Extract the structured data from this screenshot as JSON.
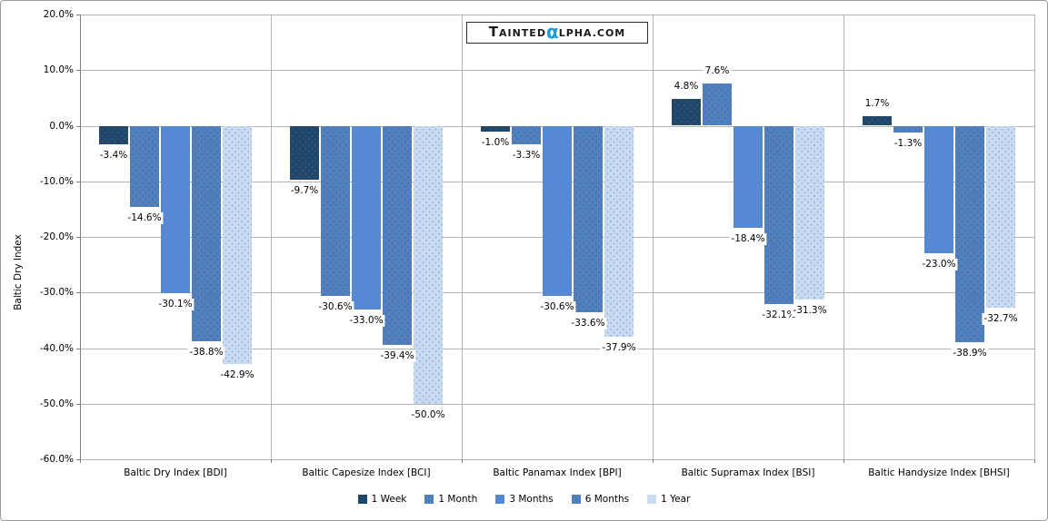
{
  "logo": {
    "t": "T",
    "ainted": "AINTED",
    "alpha": "α",
    "lpha_com": "LPHA.COM"
  },
  "chart_data": {
    "type": "bar",
    "title": "",
    "ylabel": "Baltic Dry Index",
    "xlabel": "",
    "ylim": [
      -60,
      20
    ],
    "ytick_step": 10,
    "grid": true,
    "legend_position": "bottom",
    "ytick_labels": [
      "20.0%",
      "10.0%",
      "0.0%",
      "-10.0%",
      "-20.0%",
      "-30.0%",
      "-40.0%",
      "-50.0%",
      "-60.0%"
    ],
    "categories": [
      "Baltic Dry Index [BDI]",
      "Baltic Capesize Index [BCI]",
      "Baltic Panamax Index [BPI]",
      "Baltic Supramax Index [BSI]",
      "Baltic Handysize Index [BHSI]"
    ],
    "series": [
      {
        "name": "1 Week",
        "color": "#1f4769",
        "texture": "dots",
        "dot_color": "rgba(110,100,165,0.35)",
        "values": [
          -3.4,
          -9.7,
          -1.0,
          4.8,
          1.7
        ],
        "value_labels": [
          "-3.4%",
          "-9.7%",
          "-1.0%",
          "4.8%",
          "1.7%"
        ]
      },
      {
        "name": "1 Month",
        "color": "#4e81bd",
        "texture": "dots",
        "dot_color": "rgba(98,78,150,0.5)",
        "values": [
          -14.6,
          -30.6,
          -3.3,
          7.6,
          -1.3
        ],
        "value_labels": [
          "-14.6%",
          "-30.6%",
          "-3.3%",
          "7.6%",
          "-1.3%"
        ]
      },
      {
        "name": "3 Months",
        "color": "#5589d5",
        "texture": "solid",
        "dot_color": "",
        "values": [
          -30.1,
          -33.0,
          -30.6,
          -18.4,
          -23.0
        ],
        "value_labels": [
          "-30.1%",
          "-33.0%",
          "-30.6%",
          "-18.4%",
          "-23.0%"
        ]
      },
      {
        "name": "6 Months",
        "color": "#4e81bd",
        "texture": "dots",
        "dot_color": "rgba(98,78,150,0.5)",
        "values": [
          -38.8,
          -39.4,
          -33.6,
          -32.1,
          -38.9
        ],
        "value_labels": [
          "-38.8%",
          "-39.4%",
          "-33.6%",
          "-32.1%",
          "-38.9%"
        ]
      },
      {
        "name": "1 Year",
        "color": "#c9dbf1",
        "texture": "dots",
        "dot_color": "rgba(128,158,205,0.6)",
        "values": [
          -42.9,
          -50.0,
          -37.9,
          -31.3,
          -32.7
        ],
        "value_labels": [
          "-42.9%",
          "-50.0%",
          "-37.9%",
          "-31.3%",
          "-32.7%"
        ]
      }
    ]
  }
}
